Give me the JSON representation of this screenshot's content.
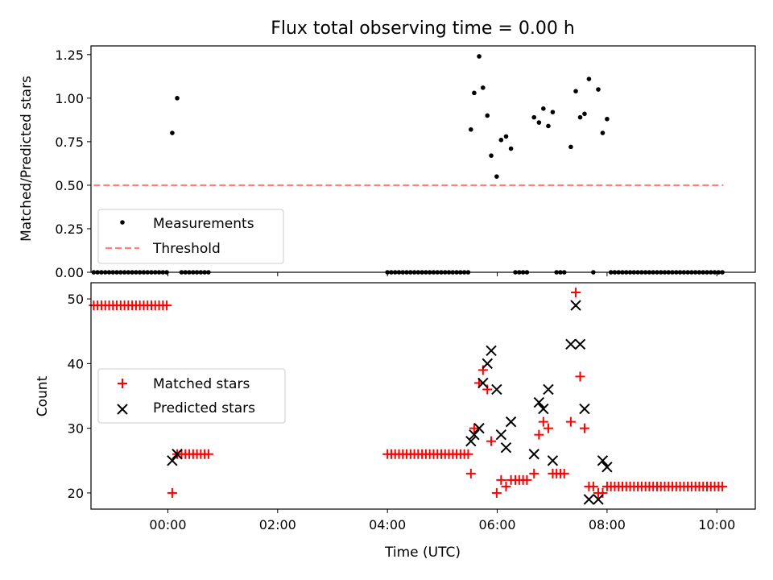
{
  "chart_data": [
    {
      "type": "scatter",
      "title": "Flux total observing time = 0.00 h",
      "xlabel": "",
      "ylabel": "Matched/Predicted stars",
      "xlim": [
        -1.4,
        10.7
      ],
      "ylim": [
        0,
        1.3
      ],
      "x_unit": "hours (UTC)",
      "xticks": [
        0,
        2,
        4,
        6,
        8,
        10
      ],
      "xtick_labels": [
        "",
        "",
        "",
        "",
        "",
        ""
      ],
      "yticks": [
        0,
        0.25,
        0.5,
        0.75,
        1.0,
        1.25
      ],
      "ytick_labels": [
        "0.00",
        "0.25",
        "0.50",
        "0.75",
        "1.00",
        "1.25"
      ],
      "legend_position": "lower-left",
      "grid": false,
      "series": [
        {
          "name": "Measurements",
          "marker": "dot",
          "color": "#000000",
          "points": [
            [
              -1.35,
              0
            ],
            [
              -1.28,
              0
            ],
            [
              -1.21,
              0
            ],
            [
              -1.14,
              0
            ],
            [
              -1.07,
              0
            ],
            [
              -1.0,
              0
            ],
            [
              -0.93,
              0
            ],
            [
              -0.86,
              0
            ],
            [
              -0.79,
              0
            ],
            [
              -0.72,
              0
            ],
            [
              -0.65,
              0
            ],
            [
              -0.58,
              0
            ],
            [
              -0.51,
              0
            ],
            [
              -0.44,
              0
            ],
            [
              -0.37,
              0
            ],
            [
              -0.3,
              0
            ],
            [
              -0.23,
              0
            ],
            [
              -0.16,
              0
            ],
            [
              -0.09,
              0
            ],
            [
              -0.02,
              0
            ],
            [
              0.08,
              0.8
            ],
            [
              0.17,
              1.0
            ],
            [
              0.25,
              0
            ],
            [
              0.32,
              0
            ],
            [
              0.39,
              0
            ],
            [
              0.46,
              0
            ],
            [
              0.53,
              0
            ],
            [
              0.6,
              0
            ],
            [
              0.67,
              0
            ],
            [
              0.74,
              0
            ],
            [
              4.0,
              0
            ],
            [
              4.07,
              0
            ],
            [
              4.14,
              0
            ],
            [
              4.21,
              0
            ],
            [
              4.28,
              0
            ],
            [
              4.35,
              0
            ],
            [
              4.42,
              0
            ],
            [
              4.49,
              0
            ],
            [
              4.56,
              0
            ],
            [
              4.63,
              0
            ],
            [
              4.7,
              0
            ],
            [
              4.77,
              0
            ],
            [
              4.84,
              0
            ],
            [
              4.91,
              0
            ],
            [
              4.98,
              0
            ],
            [
              5.05,
              0
            ],
            [
              5.12,
              0
            ],
            [
              5.19,
              0
            ],
            [
              5.26,
              0
            ],
            [
              5.33,
              0
            ],
            [
              5.4,
              0
            ],
            [
              5.47,
              0
            ],
            [
              5.52,
              0.82
            ],
            [
              5.58,
              1.03
            ],
            [
              5.67,
              1.24
            ],
            [
              5.74,
              1.06
            ],
            [
              5.82,
              0.9
            ],
            [
              5.89,
              0.67
            ],
            [
              5.99,
              0.55
            ],
            [
              6.07,
              0.76
            ],
            [
              6.16,
              0.78
            ],
            [
              6.25,
              0.71
            ],
            [
              6.33,
              0
            ],
            [
              6.4,
              0
            ],
            [
              6.47,
              0
            ],
            [
              6.54,
              0
            ],
            [
              6.67,
              0.89
            ],
            [
              6.76,
              0.86
            ],
            [
              6.84,
              0.94
            ],
            [
              6.93,
              0.84
            ],
            [
              7.01,
              0.92
            ],
            [
              7.08,
              0
            ],
            [
              7.15,
              0
            ],
            [
              7.22,
              0
            ],
            [
              7.34,
              0.72
            ],
            [
              7.43,
              1.04
            ],
            [
              7.51,
              0.89
            ],
            [
              7.59,
              0.91
            ],
            [
              7.67,
              1.11
            ],
            [
              7.75,
              0
            ],
            [
              7.84,
              1.05
            ],
            [
              7.92,
              0.8
            ],
            [
              8.0,
              0.88
            ],
            [
              8.07,
              0
            ],
            [
              8.14,
              0
            ],
            [
              8.21,
              0
            ],
            [
              8.28,
              0
            ],
            [
              8.35,
              0
            ],
            [
              8.42,
              0
            ],
            [
              8.49,
              0
            ],
            [
              8.56,
              0
            ],
            [
              8.63,
              0
            ],
            [
              8.7,
              0
            ],
            [
              8.77,
              0
            ],
            [
              8.84,
              0
            ],
            [
              8.91,
              0
            ],
            [
              8.98,
              0
            ],
            [
              9.05,
              0
            ],
            [
              9.12,
              0
            ],
            [
              9.19,
              0
            ],
            [
              9.26,
              0
            ],
            [
              9.33,
              0
            ],
            [
              9.4,
              0
            ],
            [
              9.47,
              0
            ],
            [
              9.54,
              0
            ],
            [
              9.61,
              0
            ],
            [
              9.68,
              0
            ],
            [
              9.75,
              0
            ],
            [
              9.82,
              0
            ],
            [
              9.89,
              0
            ],
            [
              9.96,
              0
            ],
            [
              10.03,
              0
            ],
            [
              10.1,
              0
            ]
          ]
        },
        {
          "name": "Threshold",
          "style": "dashed-line",
          "color": "#ff7f7f",
          "points": [
            [
              -1.35,
              0.5
            ],
            [
              10.12,
              0.5
            ]
          ]
        }
      ]
    },
    {
      "type": "scatter",
      "title": "",
      "xlabel": "Time (UTC)",
      "ylabel": "Count",
      "xlim": [
        -1.4,
        10.7
      ],
      "ylim": [
        17.5,
        52.5
      ],
      "x_unit": "hours (UTC)",
      "xticks": [
        0,
        2,
        4,
        6,
        8,
        10
      ],
      "xtick_labels": [
        "00:00",
        "02:00",
        "04:00",
        "06:00",
        "08:00",
        "10:00"
      ],
      "yticks": [
        20,
        30,
        40,
        50
      ],
      "ytick_labels": [
        "20",
        "30",
        "40",
        "50"
      ],
      "legend_position": "center-left",
      "grid": false,
      "series": [
        {
          "name": "Matched stars",
          "marker": "plus",
          "color": "#ff0000",
          "points": [
            [
              -1.35,
              49
            ],
            [
              -1.28,
              49
            ],
            [
              -1.21,
              49
            ],
            [
              -1.14,
              49
            ],
            [
              -1.07,
              49
            ],
            [
              -1.0,
              49
            ],
            [
              -0.93,
              49
            ],
            [
              -0.86,
              49
            ],
            [
              -0.79,
              49
            ],
            [
              -0.72,
              49
            ],
            [
              -0.65,
              49
            ],
            [
              -0.58,
              49
            ],
            [
              -0.51,
              49
            ],
            [
              -0.44,
              49
            ],
            [
              -0.37,
              49
            ],
            [
              -0.3,
              49
            ],
            [
              -0.23,
              49
            ],
            [
              -0.16,
              49
            ],
            [
              -0.09,
              49
            ],
            [
              -0.02,
              49
            ],
            [
              0.08,
              20
            ],
            [
              0.17,
              26
            ],
            [
              0.25,
              26
            ],
            [
              0.32,
              26
            ],
            [
              0.39,
              26
            ],
            [
              0.46,
              26
            ],
            [
              0.53,
              26
            ],
            [
              0.6,
              26
            ],
            [
              0.67,
              26
            ],
            [
              0.74,
              26
            ],
            [
              4.0,
              26
            ],
            [
              4.07,
              26
            ],
            [
              4.14,
              26
            ],
            [
              4.21,
              26
            ],
            [
              4.28,
              26
            ],
            [
              4.35,
              26
            ],
            [
              4.42,
              26
            ],
            [
              4.49,
              26
            ],
            [
              4.56,
              26
            ],
            [
              4.63,
              26
            ],
            [
              4.7,
              26
            ],
            [
              4.77,
              26
            ],
            [
              4.84,
              26
            ],
            [
              4.91,
              26
            ],
            [
              4.98,
              26
            ],
            [
              5.05,
              26
            ],
            [
              5.12,
              26
            ],
            [
              5.19,
              26
            ],
            [
              5.26,
              26
            ],
            [
              5.33,
              26
            ],
            [
              5.4,
              26
            ],
            [
              5.47,
              26
            ],
            [
              5.52,
              23
            ],
            [
              5.58,
              30
            ],
            [
              5.67,
              37
            ],
            [
              5.74,
              39
            ],
            [
              5.82,
              36
            ],
            [
              5.89,
              28
            ],
            [
              5.99,
              20
            ],
            [
              6.07,
              22
            ],
            [
              6.16,
              21
            ],
            [
              6.25,
              22
            ],
            [
              6.33,
              22
            ],
            [
              6.4,
              22
            ],
            [
              6.47,
              22
            ],
            [
              6.54,
              22
            ],
            [
              6.67,
              23
            ],
            [
              6.76,
              29
            ],
            [
              6.84,
              31
            ],
            [
              6.93,
              30
            ],
            [
              7.01,
              23
            ],
            [
              7.08,
              23
            ],
            [
              7.15,
              23
            ],
            [
              7.22,
              23
            ],
            [
              7.34,
              31
            ],
            [
              7.43,
              51
            ],
            [
              7.51,
              38
            ],
            [
              7.59,
              30
            ],
            [
              7.67,
              21
            ],
            [
              7.75,
              21
            ],
            [
              7.84,
              20
            ],
            [
              7.92,
              20
            ],
            [
              8.0,
              21
            ],
            [
              8.07,
              21
            ],
            [
              8.14,
              21
            ],
            [
              8.21,
              21
            ],
            [
              8.28,
              21
            ],
            [
              8.35,
              21
            ],
            [
              8.42,
              21
            ],
            [
              8.49,
              21
            ],
            [
              8.56,
              21
            ],
            [
              8.63,
              21
            ],
            [
              8.7,
              21
            ],
            [
              8.77,
              21
            ],
            [
              8.84,
              21
            ],
            [
              8.91,
              21
            ],
            [
              8.98,
              21
            ],
            [
              9.05,
              21
            ],
            [
              9.12,
              21
            ],
            [
              9.19,
              21
            ],
            [
              9.26,
              21
            ],
            [
              9.33,
              21
            ],
            [
              9.4,
              21
            ],
            [
              9.47,
              21
            ],
            [
              9.54,
              21
            ],
            [
              9.61,
              21
            ],
            [
              9.68,
              21
            ],
            [
              9.75,
              21
            ],
            [
              9.82,
              21
            ],
            [
              9.89,
              21
            ],
            [
              9.96,
              21
            ],
            [
              10.03,
              21
            ],
            [
              10.1,
              21
            ]
          ]
        },
        {
          "name": "Predicted stars",
          "marker": "x",
          "color": "#000000",
          "points": [
            [
              0.08,
              25
            ],
            [
              0.17,
              26
            ],
            [
              5.52,
              28
            ],
            [
              5.58,
              29
            ],
            [
              5.67,
              30
            ],
            [
              5.74,
              37
            ],
            [
              5.82,
              40
            ],
            [
              5.89,
              42
            ],
            [
              5.99,
              36
            ],
            [
              6.07,
              29
            ],
            [
              6.16,
              27
            ],
            [
              6.25,
              31
            ],
            [
              6.67,
              26
            ],
            [
              6.76,
              34
            ],
            [
              6.84,
              33
            ],
            [
              6.93,
              36
            ],
            [
              7.01,
              25
            ],
            [
              7.34,
              43
            ],
            [
              7.43,
              49
            ],
            [
              7.51,
              43
            ],
            [
              7.59,
              33
            ],
            [
              7.67,
              19
            ],
            [
              7.84,
              19
            ],
            [
              7.92,
              25
            ],
            [
              8.0,
              24
            ]
          ]
        }
      ]
    }
  ]
}
